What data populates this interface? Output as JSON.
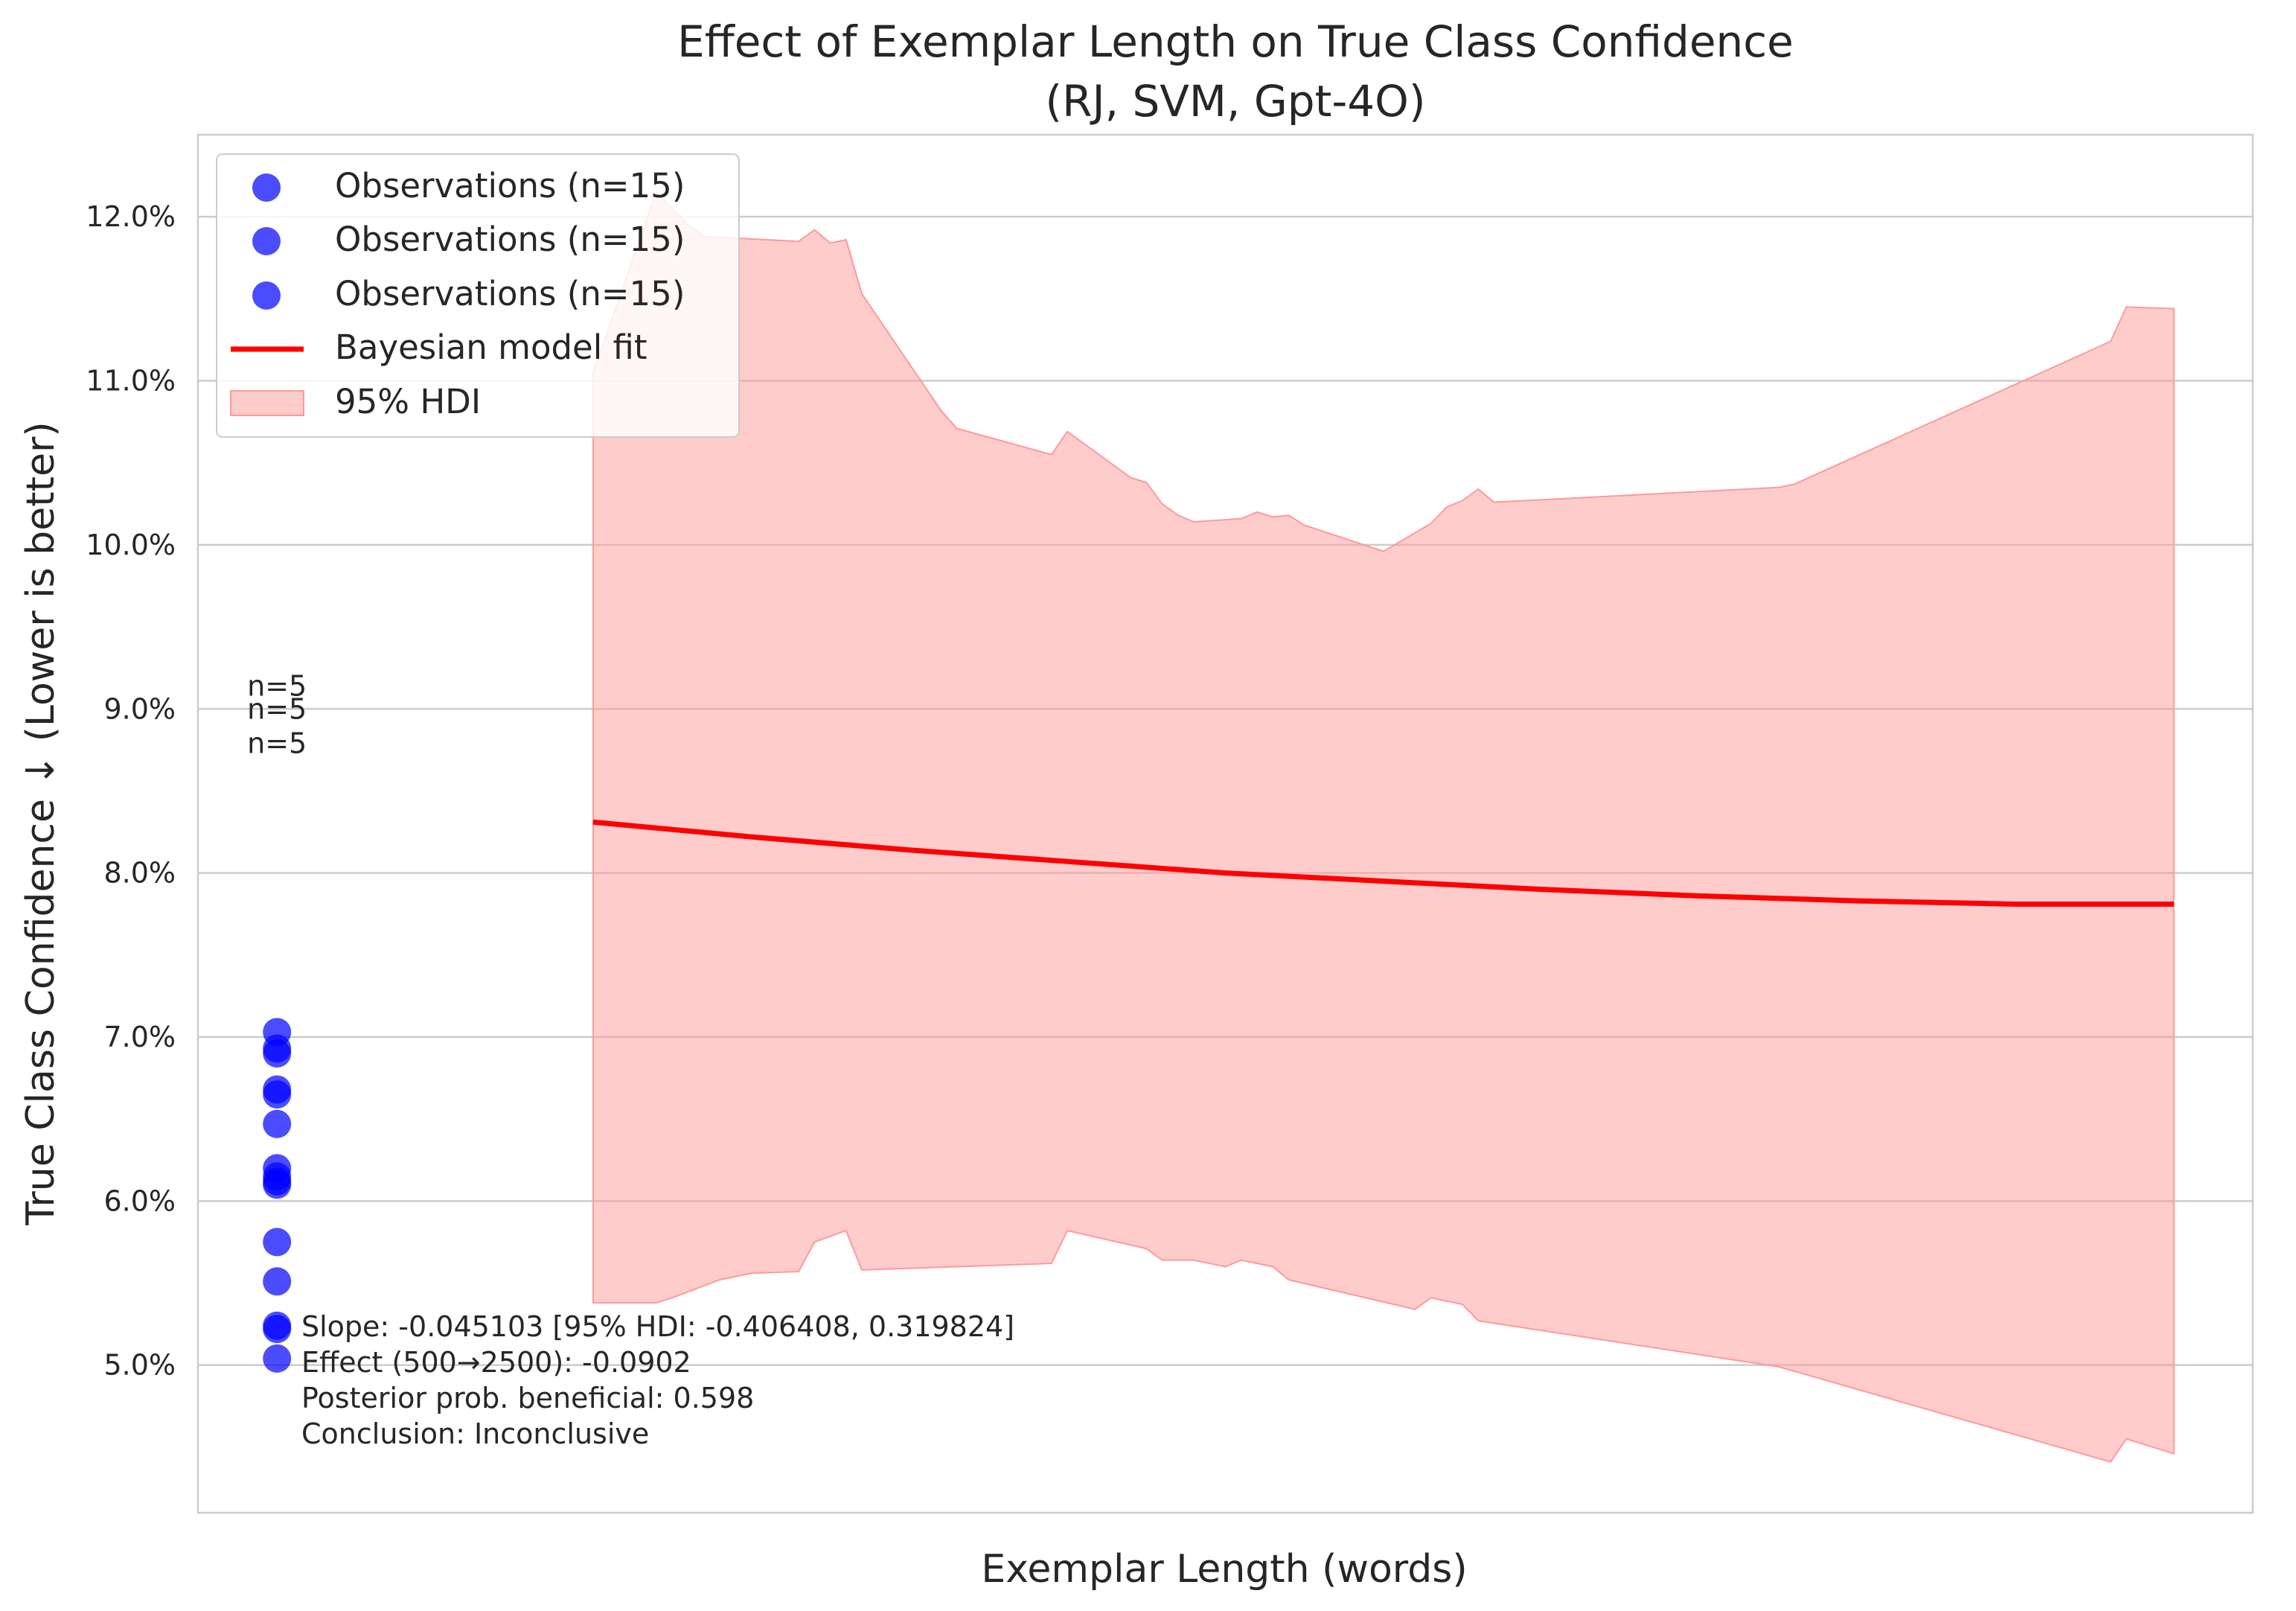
{
  "chart_data": {
    "type": "scatter",
    "title": "Effect of Exemplar Length on True Class Confidence",
    "subtitle": "(RJ, SVM, Gpt-4O)",
    "xlabel": "Exemplar Length (words)",
    "ylabel": "True Class Confidence ↓ (Lower is better)",
    "ylim": [
      4.1,
      12.5
    ],
    "grid": "horizontal",
    "legend_placement": "top-left",
    "yticks": [
      {
        "value": 5.0,
        "label": "5.0%"
      },
      {
        "value": 6.0,
        "label": "6.0%"
      },
      {
        "value": 7.0,
        "label": "7.0%"
      },
      {
        "value": 8.0,
        "label": "8.0%"
      },
      {
        "value": 9.0,
        "label": "9.0%"
      },
      {
        "value": 10.0,
        "label": "10.0%"
      },
      {
        "value": 11.0,
        "label": "11.0%"
      },
      {
        "value": 12.0,
        "label": "12.0%"
      }
    ],
    "series": [
      {
        "name": "Observations (n=15)",
        "kind": "scatter",
        "color": "#0000ff",
        "points": [
          {
            "x": 0,
            "y": 7.03
          },
          {
            "x": 0,
            "y": 6.93
          },
          {
            "x": 0,
            "y": 6.9
          },
          {
            "x": 0,
            "y": 6.68
          },
          {
            "x": 0,
            "y": 6.65
          }
        ]
      },
      {
        "name": "Observations (n=15)",
        "kind": "scatter",
        "color": "#0000ff",
        "points": [
          {
            "x": 0,
            "y": 6.47
          },
          {
            "x": 0,
            "y": 6.2
          },
          {
            "x": 0,
            "y": 6.15
          },
          {
            "x": 0,
            "y": 6.12
          },
          {
            "x": 0,
            "y": 6.1
          }
        ]
      },
      {
        "name": "Observations (n=15)",
        "kind": "scatter",
        "color": "#0000ff",
        "points": [
          {
            "x": 0,
            "y": 5.75
          },
          {
            "x": 0,
            "y": 5.51
          },
          {
            "x": 0,
            "y": 5.24
          },
          {
            "x": 0,
            "y": 5.22
          },
          {
            "x": 0,
            "y": 5.04
          }
        ]
      },
      {
        "name": "Bayesian model fit",
        "kind": "line",
        "color": "#ff0000",
        "points": [
          {
            "x": 0.2,
            "y": 8.31
          },
          {
            "x": 0.3,
            "y": 8.22
          },
          {
            "x": 0.4,
            "y": 8.14
          },
          {
            "x": 0.5,
            "y": 8.07
          },
          {
            "x": 0.6,
            "y": 8.0
          },
          {
            "x": 0.7,
            "y": 7.95
          },
          {
            "x": 0.8,
            "y": 7.9
          },
          {
            "x": 0.9,
            "y": 7.86
          },
          {
            "x": 1.0,
            "y": 7.83
          },
          {
            "x": 1.1,
            "y": 7.81
          },
          {
            "x": 1.2,
            "y": 7.81
          }
        ]
      },
      {
        "name": "95% HDI",
        "kind": "band",
        "color": "#ff9999",
        "upper": [
          {
            "x": 0.2,
            "y": 11.05
          },
          {
            "x": 0.24,
            "y": 12.15
          },
          {
            "x": 0.26,
            "y": 11.95
          },
          {
            "x": 0.27,
            "y": 11.88
          },
          {
            "x": 0.33,
            "y": 11.85
          },
          {
            "x": 0.34,
            "y": 11.92
          },
          {
            "x": 0.35,
            "y": 11.84
          },
          {
            "x": 0.36,
            "y": 11.86
          },
          {
            "x": 0.37,
            "y": 11.53
          },
          {
            "x": 0.42,
            "y": 10.82
          },
          {
            "x": 0.43,
            "y": 10.71
          },
          {
            "x": 0.49,
            "y": 10.55
          },
          {
            "x": 0.5,
            "y": 10.69
          },
          {
            "x": 0.53,
            "y": 10.48
          },
          {
            "x": 0.54,
            "y": 10.41
          },
          {
            "x": 0.55,
            "y": 10.38
          },
          {
            "x": 0.56,
            "y": 10.25
          },
          {
            "x": 0.57,
            "y": 10.18
          },
          {
            "x": 0.58,
            "y": 10.14
          },
          {
            "x": 0.61,
            "y": 10.16
          },
          {
            "x": 0.62,
            "y": 10.2
          },
          {
            "x": 0.63,
            "y": 10.17
          },
          {
            "x": 0.64,
            "y": 10.18
          },
          {
            "x": 0.65,
            "y": 10.12
          },
          {
            "x": 0.7,
            "y": 9.96
          },
          {
            "x": 0.73,
            "y": 10.13
          },
          {
            "x": 0.74,
            "y": 10.23
          },
          {
            "x": 0.75,
            "y": 10.27
          },
          {
            "x": 0.76,
            "y": 10.34
          },
          {
            "x": 0.77,
            "y": 10.26
          },
          {
            "x": 0.95,
            "y": 10.35
          },
          {
            "x": 0.96,
            "y": 10.37
          },
          {
            "x": 1.16,
            "y": 11.24
          },
          {
            "x": 1.17,
            "y": 11.45
          },
          {
            "x": 1.2,
            "y": 11.44
          }
        ],
        "lower": [
          {
            "x": 0.2,
            "y": 5.38
          },
          {
            "x": 0.24,
            "y": 5.38
          },
          {
            "x": 0.25,
            "y": 5.41
          },
          {
            "x": 0.28,
            "y": 5.52
          },
          {
            "x": 0.3,
            "y": 5.56
          },
          {
            "x": 0.33,
            "y": 5.57
          },
          {
            "x": 0.34,
            "y": 5.75
          },
          {
            "x": 0.36,
            "y": 5.82
          },
          {
            "x": 0.37,
            "y": 5.58
          },
          {
            "x": 0.49,
            "y": 5.62
          },
          {
            "x": 0.5,
            "y": 5.82
          },
          {
            "x": 0.55,
            "y": 5.71
          },
          {
            "x": 0.56,
            "y": 5.64
          },
          {
            "x": 0.58,
            "y": 5.64
          },
          {
            "x": 0.6,
            "y": 5.6
          },
          {
            "x": 0.61,
            "y": 5.64
          },
          {
            "x": 0.63,
            "y": 5.6
          },
          {
            "x": 0.64,
            "y": 5.52
          },
          {
            "x": 0.72,
            "y": 5.34
          },
          {
            "x": 0.73,
            "y": 5.41
          },
          {
            "x": 0.75,
            "y": 5.37
          },
          {
            "x": 0.76,
            "y": 5.27
          },
          {
            "x": 0.95,
            "y": 4.99
          },
          {
            "x": 1.16,
            "y": 4.41
          },
          {
            "x": 1.17,
            "y": 4.55
          },
          {
            "x": 1.2,
            "y": 4.46
          }
        ]
      }
    ],
    "count_labels": [
      {
        "text": "n=5",
        "y": 9.14
      },
      {
        "text": "n=5",
        "y": 9.0
      },
      {
        "text": "n=5",
        "y": 8.79
      }
    ],
    "legend": [
      {
        "label": "Observations (n=15)",
        "symbol": "dot"
      },
      {
        "label": "Observations (n=15)",
        "symbol": "dot"
      },
      {
        "label": "Observations (n=15)",
        "symbol": "dot"
      },
      {
        "label": "Bayesian model fit",
        "symbol": "line"
      },
      {
        "label": "95% HDI",
        "symbol": "patch"
      }
    ],
    "annotation": [
      "Slope: -0.045103 [95% HDI: -0.406408, 0.319824]",
      "Effect (500→2500): -0.0902",
      "Posterior prob. beneficial: 0.598",
      "Conclusion: Inconclusive"
    ]
  }
}
